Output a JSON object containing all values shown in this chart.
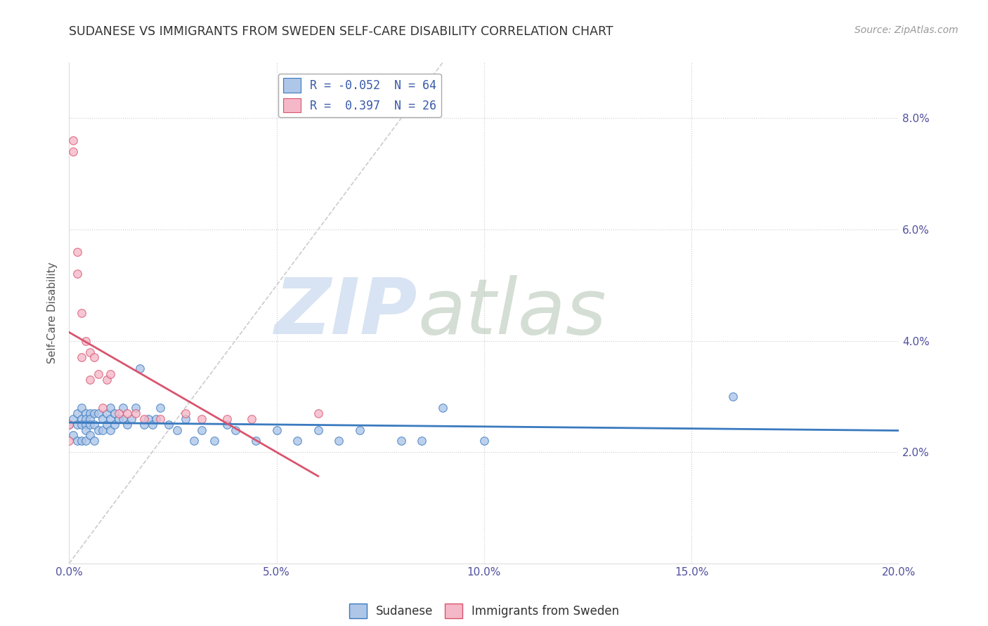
{
  "title": "SUDANESE VS IMMIGRANTS FROM SWEDEN SELF-CARE DISABILITY CORRELATION CHART",
  "source": "Source: ZipAtlas.com",
  "ylabel": "Self-Care Disability",
  "xlim": [
    0.0,
    0.2
  ],
  "ylim": [
    0.0,
    0.09
  ],
  "xticks": [
    0.0,
    0.05,
    0.1,
    0.15,
    0.2
  ],
  "yticks": [
    0.02,
    0.04,
    0.06,
    0.08
  ],
  "xticklabels": [
    "0.0%",
    "5.0%",
    "10.0%",
    "15.0%",
    "20.0%"
  ],
  "yticklabels": [
    "2.0%",
    "4.0%",
    "6.0%",
    "8.0%"
  ],
  "legend1_label": "R = -0.052  N = 64",
  "legend2_label": "R =  0.397  N = 26",
  "sudanese_color": "#aec6e8",
  "sweden_color": "#f4b8c8",
  "trend_sudanese_color": "#3a7abf",
  "trend_sweden_color": "#d9546e",
  "diagonal_color": "#cccccc",
  "sudanese_x": [
    0.0,
    0.001,
    0.001,
    0.002,
    0.002,
    0.002,
    0.003,
    0.003,
    0.003,
    0.003,
    0.004,
    0.004,
    0.004,
    0.004,
    0.004,
    0.005,
    0.005,
    0.005,
    0.005,
    0.006,
    0.006,
    0.006,
    0.007,
    0.007,
    0.008,
    0.008,
    0.009,
    0.009,
    0.01,
    0.01,
    0.01,
    0.011,
    0.011,
    0.012,
    0.013,
    0.013,
    0.014,
    0.015,
    0.016,
    0.017,
    0.018,
    0.019,
    0.02,
    0.021,
    0.022,
    0.024,
    0.026,
    0.028,
    0.03,
    0.032,
    0.035,
    0.038,
    0.04,
    0.045,
    0.05,
    0.055,
    0.06,
    0.065,
    0.07,
    0.08,
    0.085,
    0.09,
    0.1,
    0.16
  ],
  "sudanese_y": [
    0.025,
    0.026,
    0.023,
    0.027,
    0.025,
    0.022,
    0.028,
    0.026,
    0.025,
    0.022,
    0.027,
    0.026,
    0.025,
    0.024,
    0.022,
    0.027,
    0.026,
    0.025,
    0.023,
    0.027,
    0.025,
    0.022,
    0.027,
    0.024,
    0.026,
    0.024,
    0.027,
    0.025,
    0.028,
    0.026,
    0.024,
    0.027,
    0.025,
    0.026,
    0.028,
    0.026,
    0.025,
    0.026,
    0.028,
    0.035,
    0.025,
    0.026,
    0.025,
    0.026,
    0.028,
    0.025,
    0.024,
    0.026,
    0.022,
    0.024,
    0.022,
    0.025,
    0.024,
    0.022,
    0.024,
    0.022,
    0.024,
    0.022,
    0.024,
    0.022,
    0.022,
    0.028,
    0.022,
    0.03
  ],
  "sweden_x": [
    0.0,
    0.0,
    0.001,
    0.001,
    0.002,
    0.002,
    0.003,
    0.003,
    0.004,
    0.005,
    0.005,
    0.006,
    0.007,
    0.008,
    0.009,
    0.01,
    0.012,
    0.014,
    0.016,
    0.018,
    0.022,
    0.028,
    0.032,
    0.038,
    0.044,
    0.06
  ],
  "sweden_y": [
    0.025,
    0.022,
    0.076,
    0.074,
    0.056,
    0.052,
    0.045,
    0.037,
    0.04,
    0.038,
    0.033,
    0.037,
    0.034,
    0.028,
    0.033,
    0.034,
    0.027,
    0.027,
    0.027,
    0.026,
    0.026,
    0.027,
    0.026,
    0.026,
    0.026,
    0.027
  ],
  "background_color": "#ffffff",
  "watermark_zip_color": "#c8d8ee",
  "watermark_atlas_color": "#b8c8b8"
}
